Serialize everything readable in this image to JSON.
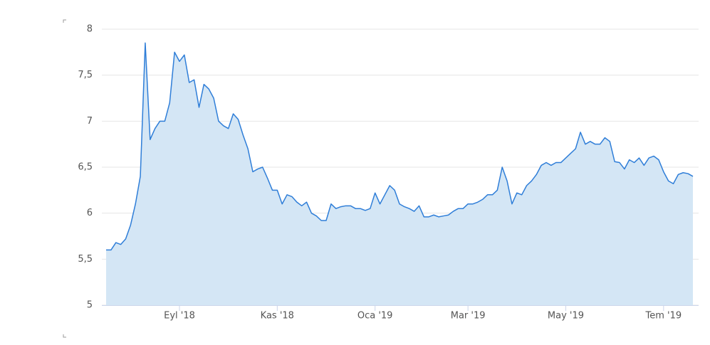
{
  "chart_data": {
    "type": "area",
    "categories": [
      null,
      null,
      null,
      null,
      null,
      null,
      null,
      null,
      null,
      null,
      null,
      null,
      null,
      null,
      null,
      "Eyl '18",
      null,
      null,
      null,
      null,
      null,
      null,
      null,
      null,
      null,
      null,
      null,
      null,
      null,
      null,
      null,
      null,
      null,
      null,
      null,
      "Kas '18",
      null,
      null,
      null,
      null,
      null,
      null,
      null,
      null,
      null,
      null,
      null,
      null,
      null,
      null,
      null,
      null,
      null,
      null,
      null,
      "Oca '19",
      null,
      null,
      null,
      null,
      null,
      null,
      null,
      null,
      null,
      null,
      null,
      null,
      null,
      null,
      null,
      null,
      null,
      null,
      "Mar '19",
      null,
      null,
      null,
      null,
      null,
      null,
      null,
      null,
      null,
      null,
      null,
      null,
      null,
      null,
      null,
      null,
      null,
      null,
      null,
      "May '19",
      null,
      null,
      null,
      null,
      null,
      null,
      null,
      null,
      null,
      null,
      null,
      null,
      null,
      null,
      null,
      null,
      null,
      null,
      null,
      "Tem '19",
      null,
      null,
      null,
      null,
      null,
      null
    ],
    "values": [
      5.6,
      5.6,
      5.68,
      5.66,
      5.72,
      5.87,
      6.1,
      6.4,
      7.85,
      6.8,
      6.92,
      7.0,
      7.0,
      7.2,
      7.75,
      7.65,
      7.72,
      7.42,
      7.45,
      7.15,
      7.4,
      7.35,
      7.25,
      7.0,
      6.95,
      6.92,
      7.08,
      7.02,
      6.85,
      6.7,
      6.45,
      6.48,
      6.5,
      6.38,
      6.25,
      6.25,
      6.1,
      6.2,
      6.18,
      6.12,
      6.08,
      6.12,
      6.0,
      5.97,
      5.92,
      5.92,
      6.1,
      6.05,
      6.07,
      6.08,
      6.08,
      6.05,
      6.05,
      6.03,
      6.05,
      6.22,
      6.1,
      6.2,
      6.3,
      6.25,
      6.1,
      6.07,
      6.05,
      6.02,
      6.08,
      5.96,
      5.96,
      5.98,
      5.96,
      5.97,
      5.98,
      6.02,
      6.05,
      6.05,
      6.1,
      6.1,
      6.12,
      6.15,
      6.2,
      6.2,
      6.25,
      6.5,
      6.35,
      6.1,
      6.22,
      6.2,
      6.3,
      6.35,
      6.42,
      6.52,
      6.55,
      6.52,
      6.55,
      6.55,
      6.6,
      6.65,
      6.7,
      6.88,
      6.75,
      6.78,
      6.75,
      6.75,
      6.82,
      6.78,
      6.56,
      6.55,
      6.48,
      6.58,
      6.55,
      6.6,
      6.52,
      6.6,
      6.62,
      6.58,
      6.45,
      6.35,
      6.32,
      6.42,
      6.44,
      6.43,
      6.4
    ],
    "color": "#2f7ed8",
    "fill": "#d4e6f5",
    "ylim": [
      5,
      8
    ],
    "yticks": [
      5,
      {
        "value": 5.5,
        "label": "5,5"
      },
      6,
      {
        "value": 6.5,
        "label": "6,5"
      },
      7,
      {
        "value": 7.5,
        "label": "7,5"
      },
      8
    ],
    "grid": true
  }
}
